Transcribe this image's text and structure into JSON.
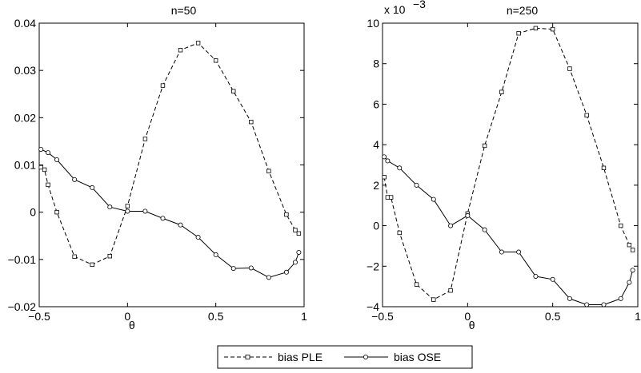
{
  "chart_data": [
    {
      "type": "line",
      "title": "n=50",
      "xlabel": "θ",
      "ylabel": "",
      "xlim": [
        -0.5,
        1
      ],
      "ylim": [
        -0.02,
        0.04
      ],
      "xticks": [
        -0.5,
        0,
        0.5,
        1
      ],
      "xtick_labels": [
        "−0.5",
        "0",
        "0.5",
        "1"
      ],
      "yticks": [
        -0.02,
        -0.01,
        0,
        0.01,
        0.02,
        0.03,
        0.04
      ],
      "ytick_labels": [
        "−0.02",
        "−0.01",
        "0",
        "0.01",
        "0.02",
        "0.03",
        "0.04"
      ],
      "exponent_label": "",
      "series": [
        {
          "name": "bias PLE",
          "style": "dashed-square",
          "x": [
            -0.49,
            -0.47,
            -0.45,
            -0.4,
            -0.3,
            -0.2,
            -0.1,
            0,
            0.1,
            0.2,
            0.3,
            0.4,
            0.5,
            0.6,
            0.7,
            0.8,
            0.9,
            0.95,
            0.97
          ],
          "y": [
            0.0095,
            0.009,
            0.0058,
            0.0,
            -0.0094,
            -0.0111,
            -0.0093,
            0.0013,
            0.0155,
            0.0268,
            0.0343,
            0.0358,
            0.0321,
            0.0256,
            0.0191,
            0.0087,
            -0.0005,
            -0.0038,
            -0.0045
          ]
        },
        {
          "name": "bias OSE",
          "style": "solid-circle",
          "x": [
            -0.49,
            -0.45,
            -0.4,
            -0.3,
            -0.2,
            -0.1,
            0,
            0.1,
            0.2,
            0.3,
            0.4,
            0.5,
            0.6,
            0.7,
            0.8,
            0.9,
            0.95,
            0.97
          ],
          "y": [
            0.0133,
            0.0126,
            0.0111,
            0.0069,
            0.0052,
            0.0011,
            0.0002,
            0.0002,
            -0.0013,
            -0.0027,
            -0.0053,
            -0.009,
            -0.0119,
            -0.0118,
            -0.0138,
            -0.0127,
            -0.0106,
            -0.0085
          ]
        }
      ]
    },
    {
      "type": "line",
      "title": "n=250",
      "xlabel": "θ",
      "ylabel": "",
      "xlim": [
        -0.5,
        1
      ],
      "ylim": [
        -4,
        10
      ],
      "xticks": [
        -0.5,
        0,
        0.5,
        1
      ],
      "xtick_labels": [
        "−0.5",
        "0",
        "0.5",
        "1"
      ],
      "yticks": [
        -4,
        -2,
        0,
        2,
        4,
        6,
        8,
        10
      ],
      "ytick_labels": [
        "−4",
        "−2",
        "0",
        "2",
        "4",
        "6",
        "8",
        "10"
      ],
      "exponent_label": "x 10",
      "exponent_power": "−3",
      "series": [
        {
          "name": "bias PLE",
          "style": "dashed-square",
          "x": [
            -0.49,
            -0.47,
            -0.45,
            -0.4,
            -0.3,
            -0.2,
            -0.1,
            0,
            0.1,
            0.2,
            0.3,
            0.4,
            0.5,
            0.6,
            0.7,
            0.8,
            0.9,
            0.95,
            0.97
          ],
          "y": [
            2.4,
            1.4,
            1.4,
            -0.35,
            -2.9,
            -3.65,
            -3.2,
            0.6,
            3.95,
            6.6,
            9.5,
            9.75,
            9.7,
            7.75,
            5.45,
            2.85,
            0.0,
            -0.95,
            -1.2
          ]
        },
        {
          "name": "bias OSE",
          "style": "solid-circle",
          "x": [
            -0.49,
            -0.47,
            -0.4,
            -0.3,
            -0.2,
            -0.1,
            0,
            0.1,
            0.2,
            0.3,
            0.4,
            0.5,
            0.6,
            0.7,
            0.8,
            0.9,
            0.95,
            0.97
          ],
          "y": [
            3.4,
            3.2,
            2.85,
            2.0,
            1.3,
            0.0,
            0.5,
            -0.2,
            -1.3,
            -1.3,
            -2.5,
            -2.65,
            -3.6,
            -3.9,
            -3.9,
            -3.6,
            -2.8,
            -2.2
          ]
        }
      ]
    }
  ],
  "legend": {
    "items": [
      {
        "label": "bias PLE",
        "style": "dashed-square"
      },
      {
        "label": "bias OSE",
        "style": "solid-circle"
      }
    ]
  },
  "colors": {
    "line": "#000000",
    "background": "#ffffff"
  }
}
